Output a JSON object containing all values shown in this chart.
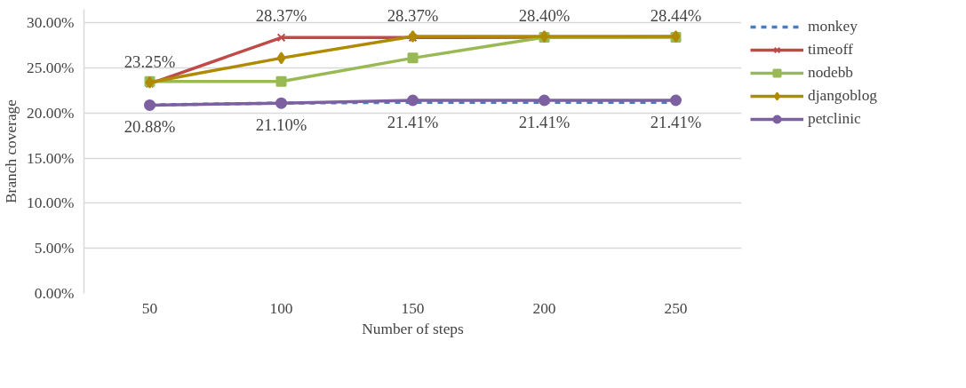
{
  "chart_data": {
    "type": "line",
    "xlabel": "Number of steps",
    "ylabel": "Branch coverage",
    "x": [
      50,
      100,
      150,
      200,
      250
    ],
    "xlim": [
      25,
      275
    ],
    "xticks": [
      50,
      100,
      150,
      200,
      250
    ],
    "ylim": [
      0,
      31.5
    ],
    "yticks": [
      {
        "value": 0,
        "label": "0.00%"
      },
      {
        "value": 5,
        "label": "5.00%"
      },
      {
        "value": 10,
        "label": "10.00%"
      },
      {
        "value": 15,
        "label": "15.00%"
      },
      {
        "value": 20,
        "label": "20.00%"
      },
      {
        "value": 25,
        "label": "25.00%"
      },
      {
        "value": 30,
        "label": "30.00%"
      }
    ],
    "grid": "y",
    "legend": "right",
    "series": [
      {
        "name": "monkey",
        "color": "#4a7ebb",
        "values": [
          20.9,
          21.1,
          21.2,
          21.2,
          21.2
        ],
        "line_style": "dashed",
        "marker": "none"
      },
      {
        "name": "timeoff",
        "color": "#be4b48",
        "values": [
          23.25,
          28.37,
          28.37,
          28.4,
          28.44
        ],
        "marker": "cross",
        "value_labels": [
          "23.25%",
          "28.37%",
          "28.37%",
          "28.40%",
          "28.44%"
        ]
      },
      {
        "name": "nodebb",
        "color": "#98b954",
        "values": [
          23.5,
          23.5,
          26.1,
          28.4,
          28.4
        ],
        "marker": "square"
      },
      {
        "name": "djangoblog",
        "color": "#b08a00",
        "values": [
          23.4,
          26.1,
          28.5,
          28.5,
          28.5
        ],
        "marker": "diamond"
      },
      {
        "name": "petclinic",
        "color": "#7d60a0",
        "values": [
          20.88,
          21.1,
          21.41,
          21.41,
          21.41
        ],
        "marker": "circle",
        "value_labels": [
          "20.88%",
          "21.10%",
          "21.41%",
          "21.41%",
          "21.41%"
        ]
      }
    ]
  }
}
